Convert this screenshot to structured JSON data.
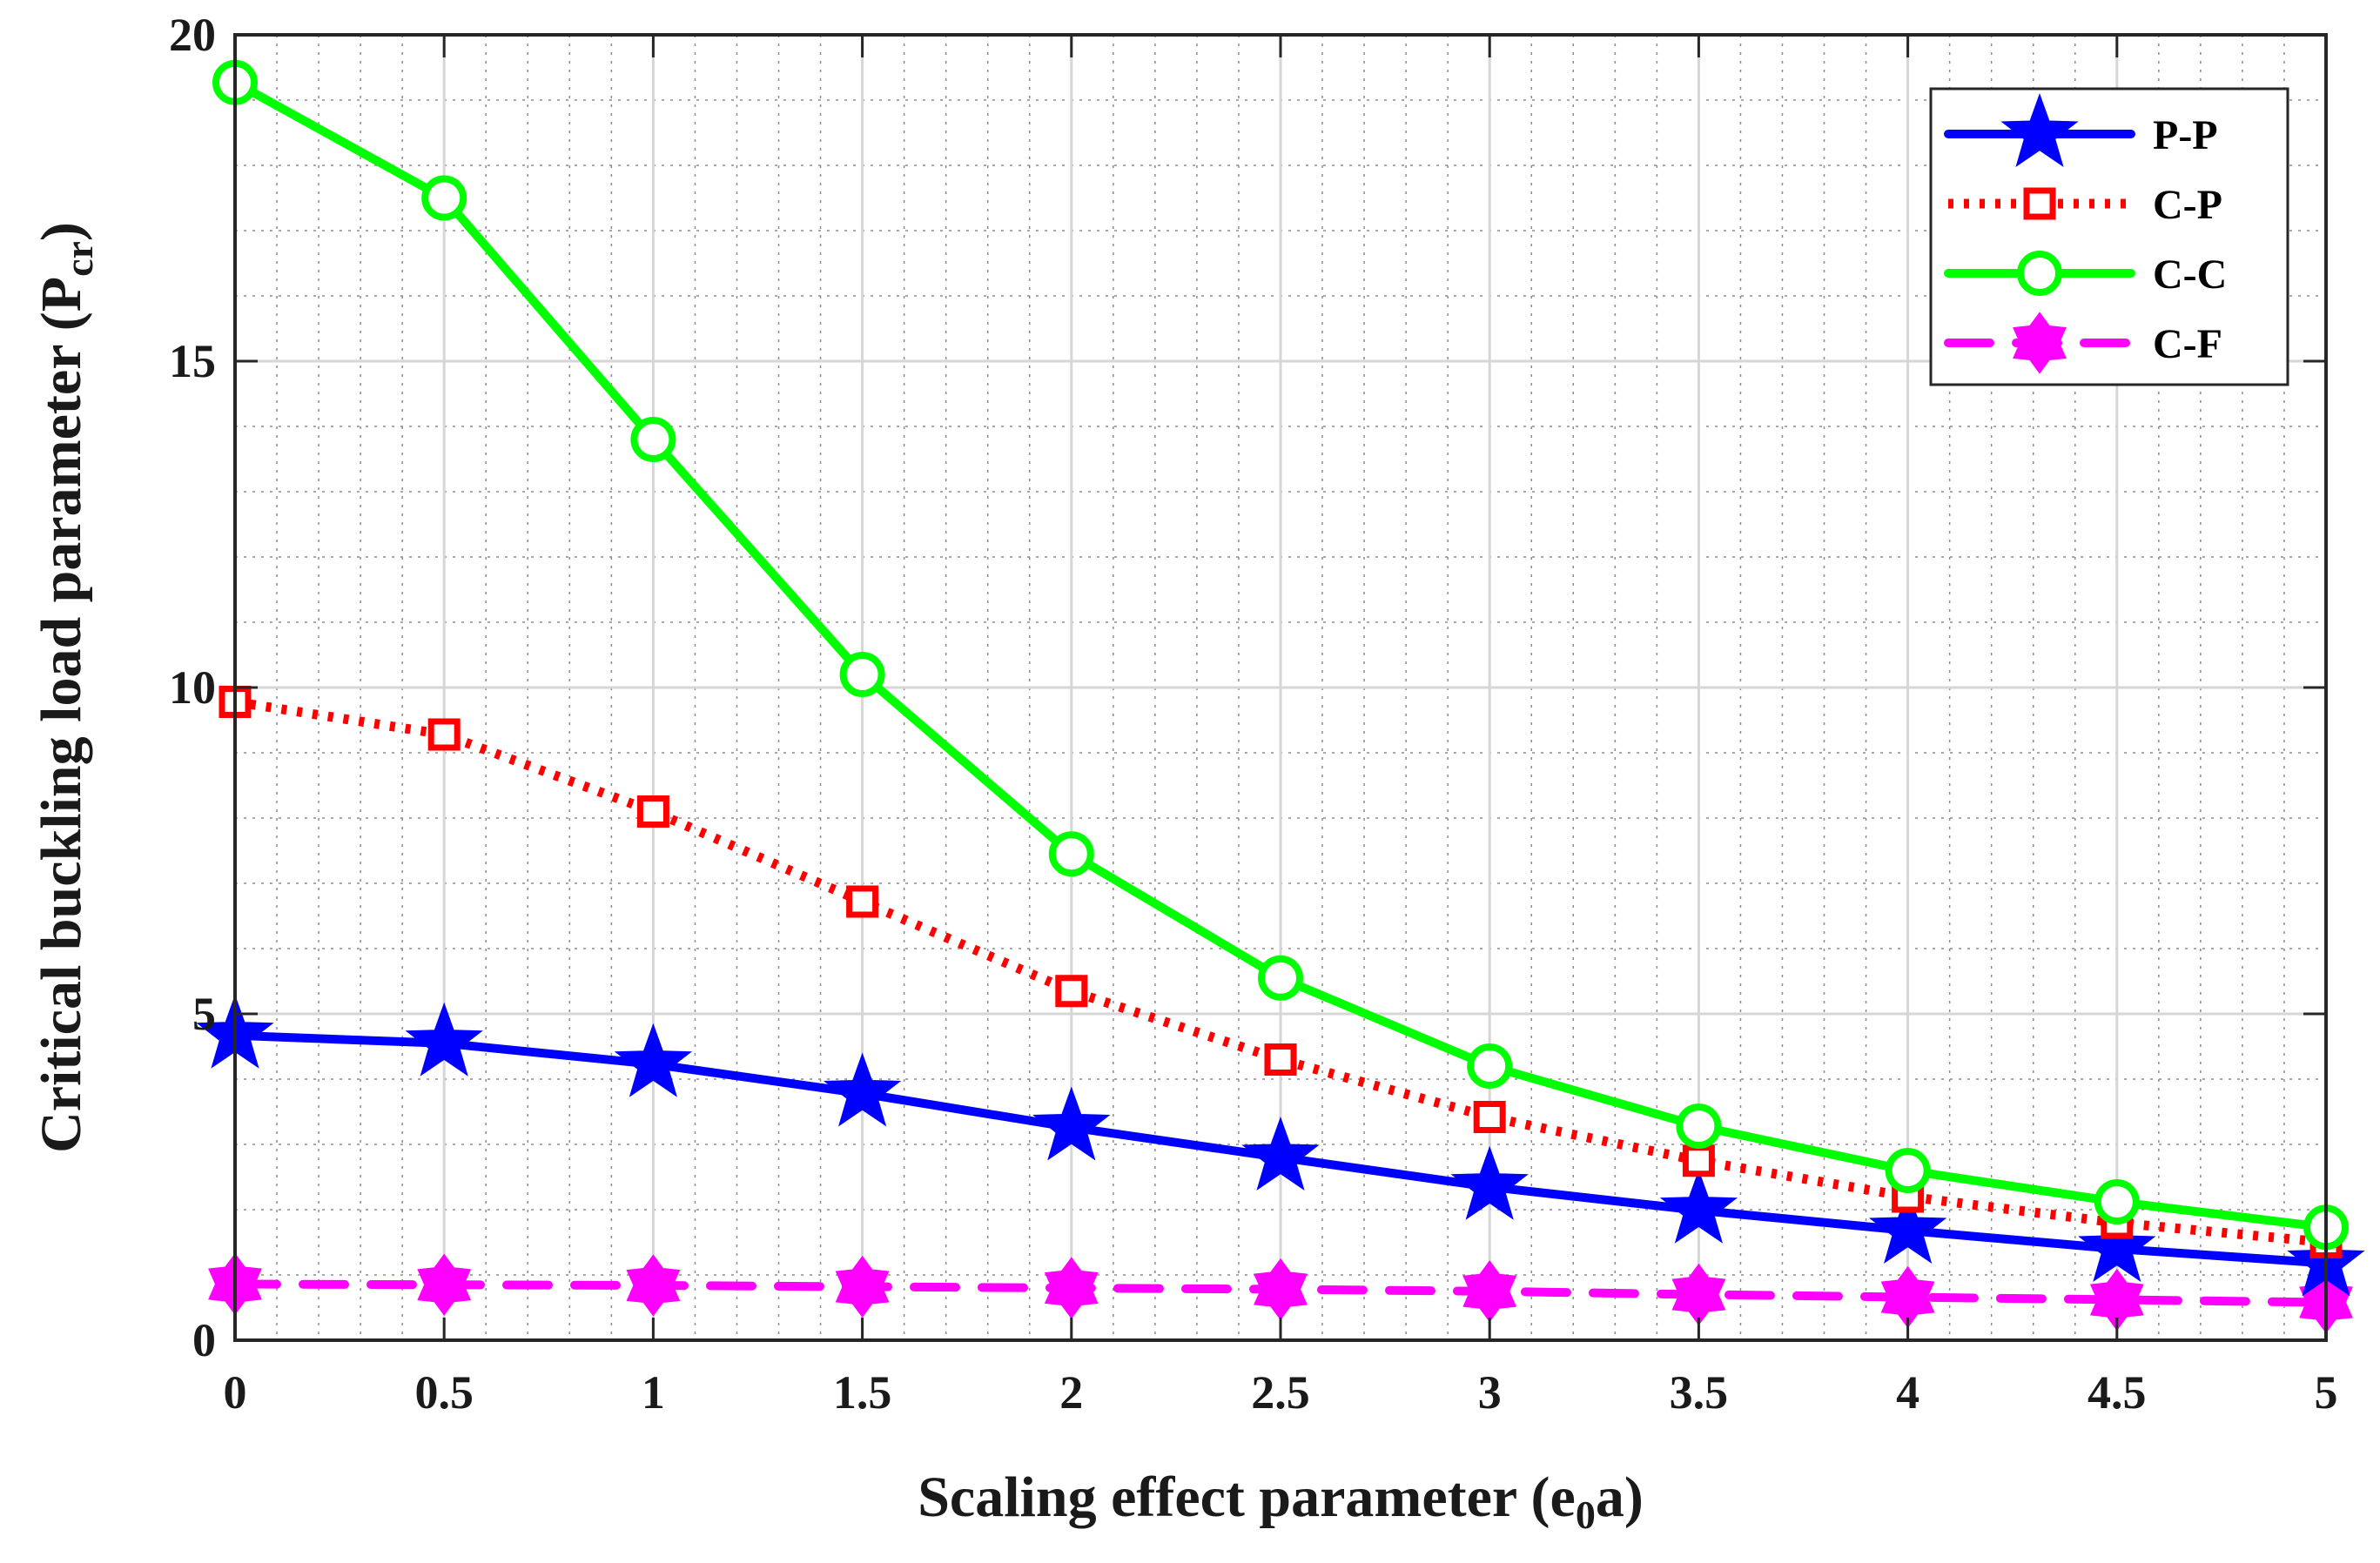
{
  "chart_data": {
    "type": "line",
    "title": "",
    "xlabel": {
      "main": "Scaling effect parameter (e",
      "sub": "0",
      "tail": "a)"
    },
    "ylabel": {
      "main": "Critical buckling load parameter (P",
      "sub": "cr",
      "tail": ")"
    },
    "xlim": [
      0,
      5
    ],
    "ylim": [
      0,
      20
    ],
    "xticks": [
      0,
      0.5,
      1,
      1.5,
      2,
      2.5,
      3,
      3.5,
      4,
      4.5,
      5
    ],
    "xtick_labels": [
      "0",
      "0.5",
      "1",
      "1.5",
      "2",
      "2.5",
      "3",
      "3.5",
      "4",
      "4.5",
      "5"
    ],
    "yticks": [
      0,
      5,
      10,
      15,
      20
    ],
    "ytick_labels": [
      "0",
      "5",
      "10",
      "15",
      "20"
    ],
    "grid": "major and minor",
    "legend_position": "top-right",
    "x": [
      0,
      0.5,
      1,
      1.5,
      2,
      2.5,
      3,
      3.5,
      4,
      4.5,
      5
    ],
    "series": [
      {
        "name": "P-P",
        "color": "#0000ff",
        "line": "solid",
        "marker": "star",
        "values": [
          4.67,
          4.55,
          4.23,
          3.78,
          3.26,
          2.8,
          2.35,
          1.99,
          1.68,
          1.4,
          1.18
        ]
      },
      {
        "name": "C-P",
        "color": "#ff0000",
        "line": "dotted",
        "marker": "square",
        "values": [
          9.78,
          9.28,
          8.1,
          6.72,
          5.35,
          4.3,
          3.42,
          2.75,
          2.2,
          1.8,
          1.5
        ]
      },
      {
        "name": "C-C",
        "color": "#00ff00",
        "line": "solid",
        "marker": "circle",
        "values": [
          19.27,
          17.5,
          13.8,
          10.2,
          7.45,
          5.55,
          4.2,
          3.28,
          2.6,
          2.12,
          1.73
        ]
      },
      {
        "name": "C-F",
        "color": "#ff00ff",
        "line": "dashed",
        "marker": "hexagram",
        "values": [
          0.86,
          0.85,
          0.84,
          0.82,
          0.8,
          0.78,
          0.75,
          0.7,
          0.66,
          0.62,
          0.58
        ]
      }
    ]
  }
}
